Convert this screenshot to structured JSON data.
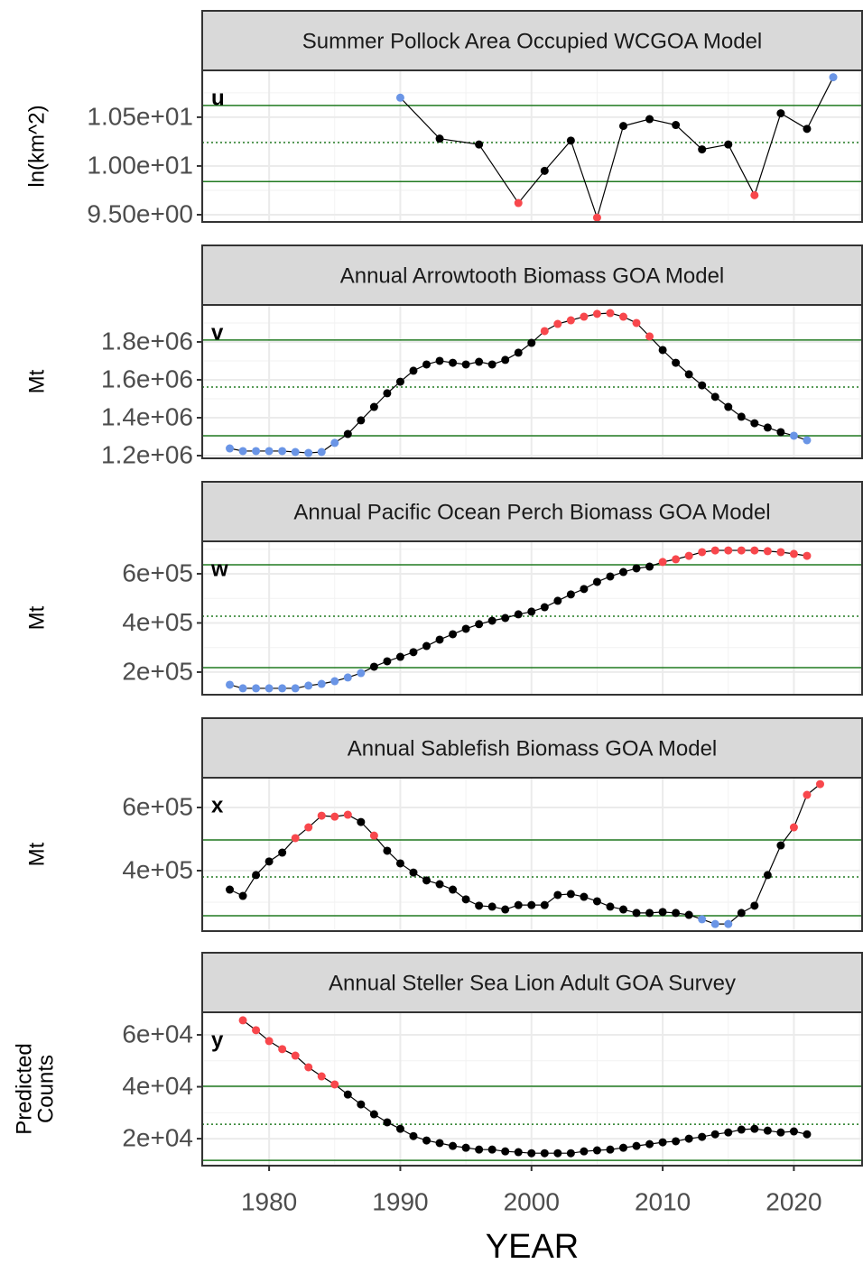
{
  "chart_data": [
    {
      "type": "line",
      "title": "Summer Pollock Area Occupied WCGOA Model",
      "label": "u",
      "ylabel": "ln(km^2)",
      "xlim": [
        1974.9,
        2025.2
      ],
      "xticks": [
        1980,
        1990,
        2000,
        2010,
        2020
      ],
      "ylim": [
        9.426,
        10.98
      ],
      "yticks": [
        {
          "value": 10.5,
          "label": "1.05e+01"
        },
        {
          "value": 10,
          "label": "1.00e+01"
        },
        {
          "value": 9.5,
          "label": "9.50e+00"
        }
      ],
      "hlines": [
        {
          "value": 10.62,
          "style": "solid"
        },
        {
          "value": 10.24,
          "style": "dotted"
        },
        {
          "value": 9.84,
          "style": "solid"
        }
      ],
      "hline_color": "#217a21",
      "line_color": "#000000",
      "grid": true,
      "x": [
        1990,
        1993,
        1996,
        1999,
        2001,
        2003,
        2005,
        2007,
        2009,
        2011,
        2013,
        2015,
        2017,
        2019,
        2021,
        2023
      ],
      "values": [
        10.7,
        10.28,
        10.22,
        9.62,
        9.95,
        10.26,
        9.47,
        10.41,
        10.48,
        10.42,
        10.17,
        10.22,
        9.7,
        10.54,
        10.38,
        10.91
      ],
      "point_colors": [
        "#6a95e6",
        "#000000",
        "#000000",
        "#f8474c",
        "#000000",
        "#000000",
        "#f8474c",
        "#000000",
        "#000000",
        "#000000",
        "#000000",
        "#000000",
        "#f8474c",
        "#000000",
        "#000000",
        "#6a95e6"
      ]
    },
    {
      "type": "line",
      "title": "Annual Arrowtooth Biomass GOA Model",
      "label": "v",
      "ylabel": "Mt",
      "xlim": [
        1974.9,
        2025.2
      ],
      "xticks": [
        1980,
        1990,
        2000,
        2010,
        2020
      ],
      "ylim": [
        1185700,
        1995000
      ],
      "yticks": [
        {
          "value": 1800000,
          "label": "1.8e+06"
        },
        {
          "value": 1600000,
          "label": "1.6e+06"
        },
        {
          "value": 1400000,
          "label": "1.4e+06"
        },
        {
          "value": 1200000,
          "label": "1.2e+06"
        }
      ],
      "hlines": [
        {
          "value": 1810000,
          "style": "solid"
        },
        {
          "value": 1562000,
          "style": "dotted"
        },
        {
          "value": 1305000,
          "style": "solid"
        }
      ],
      "hline_color": "#217a21",
      "line_color": "#000000",
      "grid": true,
      "x": [
        1977,
        1978,
        1979,
        1980,
        1981,
        1982,
        1983,
        1984,
        1985,
        1986,
        1987,
        1988,
        1989,
        1990,
        1991,
        1992,
        1993,
        1994,
        1995,
        1996,
        1997,
        1998,
        1999,
        2000,
        2001,
        2002,
        2003,
        2004,
        2005,
        2006,
        2007,
        2008,
        2009,
        2010,
        2011,
        2012,
        2013,
        2014,
        2015,
        2016,
        2017,
        2018,
        2019,
        2020,
        2021
      ],
      "values": [
        1238000,
        1224000,
        1224000,
        1224000,
        1224000,
        1219000,
        1214000,
        1219000,
        1267000,
        1314000,
        1386000,
        1457000,
        1529000,
        1590000,
        1648000,
        1681000,
        1700000,
        1690000,
        1681000,
        1695000,
        1681000,
        1705000,
        1743000,
        1795000,
        1857000,
        1895000,
        1914000,
        1933000,
        1948000,
        1952000,
        1933000,
        1900000,
        1829000,
        1757000,
        1690000,
        1629000,
        1571000,
        1510000,
        1457000,
        1405000,
        1371000,
        1348000,
        1324000,
        1305000,
        1281000
      ],
      "point_colors": [
        "#6a95e6",
        "#6a95e6",
        "#6a95e6",
        "#6a95e6",
        "#6a95e6",
        "#6a95e6",
        "#6a95e6",
        "#6a95e6",
        "#6a95e6",
        "#000000",
        "#000000",
        "#000000",
        "#000000",
        "#000000",
        "#000000",
        "#000000",
        "#000000",
        "#000000",
        "#000000",
        "#000000",
        "#000000",
        "#000000",
        "#000000",
        "#000000",
        "#f8474c",
        "#f8474c",
        "#f8474c",
        "#f8474c",
        "#f8474c",
        "#f8474c",
        "#f8474c",
        "#f8474c",
        "#f8474c",
        "#000000",
        "#000000",
        "#000000",
        "#000000",
        "#000000",
        "#000000",
        "#000000",
        "#000000",
        "#000000",
        "#000000",
        "#6a95e6",
        "#6a95e6"
      ]
    },
    {
      "type": "line",
      "title": "Annual Pacific Ocean Perch Biomass GOA Model",
      "label": "w",
      "ylabel": "Mt",
      "xlim": [
        1974.9,
        2025.2
      ],
      "xticks": [
        1980,
        1990,
        2000,
        2010,
        2020
      ],
      "ylim": [
        108000,
        732000
      ],
      "yticks": [
        {
          "value": 600000,
          "label": "6e+05"
        },
        {
          "value": 400000,
          "label": "4e+05"
        },
        {
          "value": 200000,
          "label": "2e+05"
        }
      ],
      "hlines": [
        {
          "value": 636700,
          "style": "solid"
        },
        {
          "value": 427500,
          "style": "dotted"
        },
        {
          "value": 218000,
          "style": "solid"
        }
      ],
      "hline_color": "#217a21",
      "line_color": "#000000",
      "grid": true,
      "x": [
        1977,
        1978,
        1979,
        1980,
        1981,
        1982,
        1983,
        1984,
        1985,
        1986,
        1987,
        1988,
        1989,
        1990,
        1991,
        1992,
        1993,
        1994,
        1995,
        1996,
        1997,
        1998,
        1999,
        2000,
        2001,
        2002,
        2003,
        2004,
        2005,
        2006,
        2007,
        2008,
        2009,
        2010,
        2011,
        2012,
        2013,
        2014,
        2015,
        2016,
        2017,
        2018,
        2019,
        2020,
        2021
      ],
      "values": [
        148600,
        134000,
        134000,
        134000,
        134000,
        134000,
        145000,
        152000,
        163000,
        178000,
        196000,
        222000,
        244000,
        262000,
        281000,
        306000,
        332000,
        354000,
        376000,
        395000,
        409000,
        420000,
        435000,
        446000,
        464000,
        490000,
        516000,
        538000,
        567000,
        589000,
        607000,
        622000,
        629000,
        648000,
        659000,
        673000,
        688000,
        695000,
        695000,
        695000,
        695000,
        692000,
        688000,
        681000,
        673000
      ],
      "point_colors": [
        "#6a95e6",
        "#6a95e6",
        "#6a95e6",
        "#6a95e6",
        "#6a95e6",
        "#6a95e6",
        "#6a95e6",
        "#6a95e6",
        "#6a95e6",
        "#6a95e6",
        "#6a95e6",
        "#000000",
        "#000000",
        "#000000",
        "#000000",
        "#000000",
        "#000000",
        "#000000",
        "#000000",
        "#000000",
        "#000000",
        "#000000",
        "#000000",
        "#000000",
        "#000000",
        "#000000",
        "#000000",
        "#000000",
        "#000000",
        "#000000",
        "#000000",
        "#000000",
        "#000000",
        "#f8474c",
        "#f8474c",
        "#f8474c",
        "#f8474c",
        "#f8474c",
        "#f8474c",
        "#f8474c",
        "#f8474c",
        "#f8474c",
        "#f8474c",
        "#f8474c",
        "#f8474c"
      ]
    },
    {
      "type": "line",
      "title": "Annual Sablefish Biomass GOA Model",
      "label": "x",
      "ylabel": "Mt",
      "xlim": [
        1974.9,
        2025.2
      ],
      "xticks": [
        1980,
        1990,
        2000,
        2010,
        2020
      ],
      "ylim": [
        208600,
        694300
      ],
      "yticks": [
        {
          "value": 600000,
          "label": "6e+05"
        },
        {
          "value": 400000,
          "label": "4e+05"
        }
      ],
      "hlines": [
        {
          "value": 497000,
          "style": "solid"
        },
        {
          "value": 380000,
          "style": "dotted"
        },
        {
          "value": 257000,
          "style": "solid"
        }
      ],
      "hline_color": "#217a21",
      "line_color": "#000000",
      "grid": true,
      "x": [
        1977,
        1978,
        1979,
        1980,
        1981,
        1982,
        1983,
        1984,
        1985,
        1986,
        1987,
        1988,
        1989,
        1990,
        1991,
        1992,
        1993,
        1994,
        1995,
        1996,
        1997,
        1998,
        1999,
        2000,
        2001,
        2002,
        2003,
        2004,
        2005,
        2006,
        2007,
        2008,
        2009,
        2010,
        2011,
        2012,
        2013,
        2014,
        2015,
        2016,
        2017,
        2018,
        2019,
        2020,
        2021,
        2022
      ],
      "values": [
        340000,
        320000,
        386000,
        429000,
        457000,
        503000,
        537000,
        574000,
        571000,
        577000,
        554000,
        511000,
        463000,
        423000,
        394000,
        369000,
        357000,
        340000,
        309000,
        289000,
        286000,
        277000,
        291000,
        291000,
        291000,
        323000,
        326000,
        317000,
        303000,
        286000,
        277000,
        266000,
        266000,
        269000,
        266000,
        260000,
        246000,
        231000,
        231000,
        266000,
        289000,
        386000,
        480000,
        537000,
        640000,
        674000
      ],
      "point_colors": [
        "#000000",
        "#000000",
        "#000000",
        "#000000",
        "#000000",
        "#f8474c",
        "#f8474c",
        "#f8474c",
        "#f8474c",
        "#f8474c",
        "#000000",
        "#f8474c",
        "#000000",
        "#000000",
        "#000000",
        "#000000",
        "#000000",
        "#000000",
        "#000000",
        "#000000",
        "#000000",
        "#000000",
        "#000000",
        "#000000",
        "#000000",
        "#000000",
        "#000000",
        "#000000",
        "#000000",
        "#000000",
        "#000000",
        "#000000",
        "#000000",
        "#000000",
        "#000000",
        "#000000",
        "#6a95e6",
        "#6a95e6",
        "#6a95e6",
        "#000000",
        "#000000",
        "#000000",
        "#000000",
        "#f8474c",
        "#f8474c",
        "#f8474c"
      ]
    },
    {
      "type": "line",
      "title": "Annual Steller Sea Lion Adult GOA Survey",
      "label": "y",
      "ylabel": [
        "Predicted",
        "Counts"
      ],
      "xlim": [
        1974.9,
        2025.2
      ],
      "xticks": [
        1980,
        1990,
        2000,
        2010,
        2020
      ],
      "xlabel": "YEAR",
      "ylim": [
        9600,
        68700
      ],
      "yticks": [
        {
          "value": 60000,
          "label": "6e+04"
        },
        {
          "value": 40000,
          "label": "4e+04"
        },
        {
          "value": 20000,
          "label": "2e+04"
        }
      ],
      "hlines": [
        {
          "value": 40180,
          "style": "solid"
        },
        {
          "value": 25570,
          "style": "dotted"
        },
        {
          "value": 11650,
          "style": "solid"
        }
      ],
      "hline_color": "#217a21",
      "line_color": "#000000",
      "grid": true,
      "x": [
        1978,
        1979,
        1980,
        1981,
        1982,
        1983,
        1984,
        1985,
        1986,
        1987,
        1988,
        1989,
        1990,
        1991,
        1992,
        1993,
        1994,
        1995,
        1996,
        1997,
        1998,
        1999,
        2000,
        2001,
        2002,
        2003,
        2004,
        2005,
        2006,
        2007,
        2008,
        2009,
        2010,
        2011,
        2012,
        2013,
        2014,
        2015,
        2016,
        2017,
        2018,
        2019,
        2020,
        2021
      ],
      "values": [
        65600,
        61800,
        57600,
        54500,
        52000,
        47500,
        44000,
        40900,
        37000,
        33200,
        29400,
        26300,
        23800,
        21000,
        19300,
        18300,
        17200,
        16500,
        15800,
        15800,
        15100,
        14800,
        14400,
        14400,
        14400,
        14400,
        15100,
        15500,
        15800,
        16500,
        17200,
        17900,
        18600,
        19000,
        20000,
        20700,
        21700,
        22400,
        23500,
        23800,
        23100,
        22400,
        22800,
        21700
      ],
      "point_colors": [
        "#f8474c",
        "#f8474c",
        "#f8474c",
        "#f8474c",
        "#f8474c",
        "#f8474c",
        "#f8474c",
        "#f8474c",
        "#000000",
        "#000000",
        "#000000",
        "#000000",
        "#000000",
        "#000000",
        "#000000",
        "#000000",
        "#000000",
        "#000000",
        "#000000",
        "#000000",
        "#000000",
        "#000000",
        "#000000",
        "#000000",
        "#000000",
        "#000000",
        "#000000",
        "#000000",
        "#000000",
        "#000000",
        "#000000",
        "#000000",
        "#000000",
        "#000000",
        "#000000",
        "#000000",
        "#000000",
        "#000000",
        "#000000",
        "#000000",
        "#000000",
        "#000000",
        "#000000",
        "#000000"
      ]
    }
  ]
}
